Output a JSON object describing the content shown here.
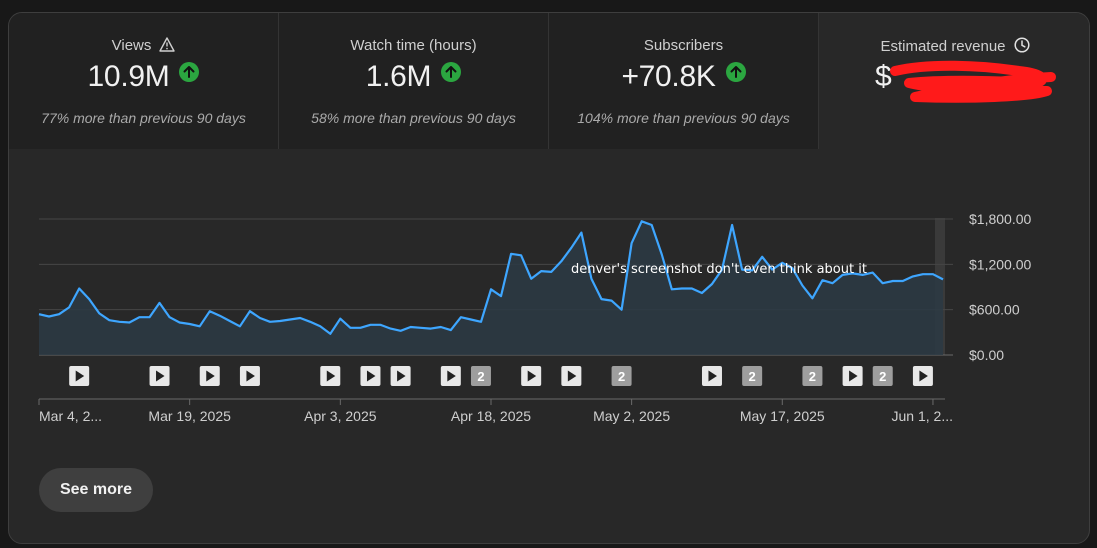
{
  "metrics": [
    {
      "title": "Views",
      "value": "10.9M",
      "change": "77% more than previous 90 days",
      "icon": "warning-icon"
    },
    {
      "title": "Watch time (hours)",
      "value": "1.6M",
      "change": "58% more than previous 90 days"
    },
    {
      "title": "Subscribers",
      "value": "+70.8K",
      "change": "104% more than previous 90 days"
    },
    {
      "title": "Estimated revenue",
      "value": "$",
      "icon": "clock-icon"
    }
  ],
  "colors": {
    "line": "#3ea6ff",
    "up_badge": "#2ba640",
    "redaction": "#ff0000"
  },
  "watermark": "denver's screenshot don't even think about it",
  "see_more_label": "See more",
  "chart_data": {
    "type": "area",
    "ylim": [
      0,
      1800
    ],
    "y_ticks": [
      0,
      600,
      1200,
      1800
    ],
    "y_tick_labels": [
      "$0.00",
      "$600.00",
      "$1,200.00",
      "$1,800.00"
    ],
    "x_tick_labels": [
      "Mar 4, 2...",
      "Mar 19, 2025",
      "Apr 3, 2025",
      "Apr 18, 2025",
      "May 2, 2025",
      "May 17, 2025",
      "Jun 1, 2..."
    ],
    "x_tick_days": [
      0,
      15,
      30,
      45,
      59,
      74,
      89
    ],
    "series": [
      {
        "name": "Estimated revenue",
        "values": [
          540,
          510,
          540,
          630,
          880,
          740,
          550,
          460,
          440,
          430,
          500,
          500,
          690,
          500,
          430,
          410,
          380,
          580,
          520,
          450,
          380,
          580,
          490,
          440,
          450,
          470,
          490,
          440,
          380,
          280,
          480,
          360,
          360,
          400,
          400,
          350,
          320,
          370,
          360,
          350,
          370,
          330,
          500,
          470,
          440,
          870,
          780,
          1340,
          1320,
          1010,
          1110,
          1100,
          1240,
          1420,
          1620,
          1010,
          740,
          720,
          600,
          1480,
          1770,
          1720,
          1330,
          870,
          880,
          880,
          820,
          940,
          1130,
          1720,
          1130,
          1120,
          1300,
          1130,
          1220,
          1150,
          920,
          750,
          990,
          950,
          1060,
          1080,
          1060,
          1090,
          950,
          980,
          980,
          1040,
          1070,
          1070,
          1000
        ]
      }
    ],
    "video_markers": [
      {
        "day": 4,
        "label": ""
      },
      {
        "day": 12,
        "label": ""
      },
      {
        "day": 17,
        "label": ""
      },
      {
        "day": 21,
        "label": ""
      },
      {
        "day": 29,
        "label": ""
      },
      {
        "day": 33,
        "label": ""
      },
      {
        "day": 36,
        "label": ""
      },
      {
        "day": 41,
        "label": ""
      },
      {
        "day": 44,
        "label": "2"
      },
      {
        "day": 49,
        "label": ""
      },
      {
        "day": 53,
        "label": ""
      },
      {
        "day": 58,
        "label": "2"
      },
      {
        "day": 67,
        "label": ""
      },
      {
        "day": 71,
        "label": "2"
      },
      {
        "day": 77,
        "label": "2"
      },
      {
        "day": 81,
        "label": ""
      },
      {
        "day": 84,
        "label": "2"
      },
      {
        "day": 88,
        "label": ""
      }
    ]
  }
}
